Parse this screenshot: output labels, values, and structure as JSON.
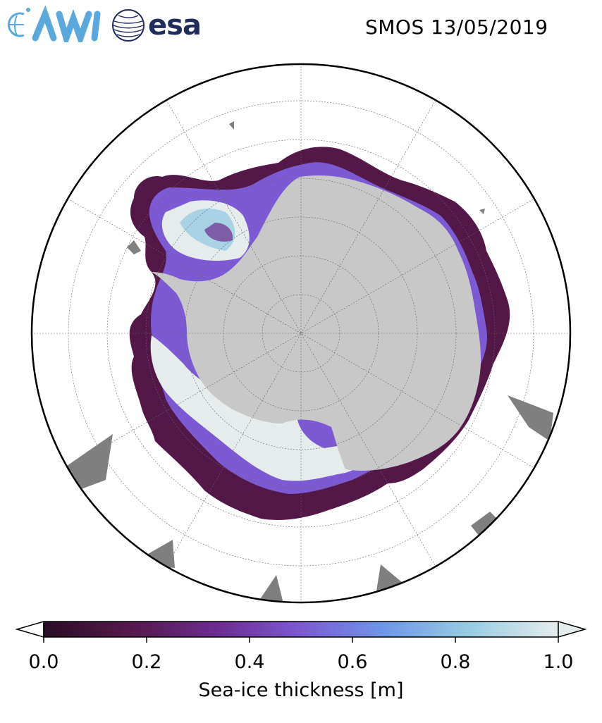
{
  "header": {
    "title": "SMOS 13/05/2019",
    "logos": [
      {
        "name": "AWI",
        "text": "AWI",
        "color": "#5aa8dc"
      },
      {
        "name": "esa",
        "text": "esa",
        "color": "#1f2c5c"
      }
    ]
  },
  "map": {
    "projection": "south polar stereographic",
    "land_color": "#c8c8c8",
    "no_data_color": "#7f7f7f",
    "ocean_color": "#ffffff",
    "graticule": true
  },
  "colorbar": {
    "label": "Sea-ice thickness [m]",
    "min": 0.0,
    "max": 1.0,
    "extend": "both",
    "ticks": [
      {
        "label": "0.0",
        "value": 0.0
      },
      {
        "label": "0.2",
        "value": 0.2
      },
      {
        "label": "0.4",
        "value": 0.4
      },
      {
        "label": "0.6",
        "value": 0.6
      },
      {
        "label": "0.8",
        "value": 0.8
      },
      {
        "label": "1.0",
        "value": 1.0
      }
    ],
    "colors": [
      "#2a0d25",
      "#531848",
      "#6c2a8c",
      "#7b5ad3",
      "#6f96e8",
      "#99cde2",
      "#e6ecec"
    ]
  }
}
